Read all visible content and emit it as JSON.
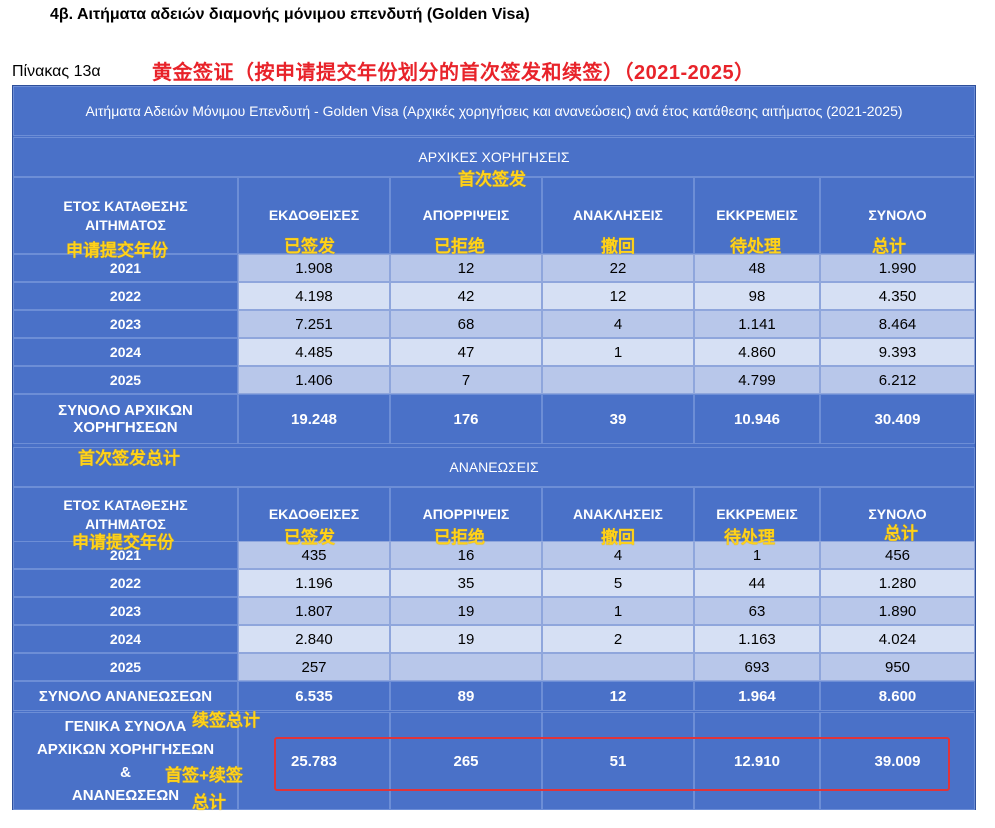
{
  "heading": "4β. Αιτήματα αδειών διαμονής μόνιμου επενδυτή (Golden Visa)",
  "table_label": "Πίνακας 13α",
  "annotation_title": "黄金签证（按申请提交年份划分的首次签发和续签）（2021-2025）",
  "table_title": "Αιτήματα Αδειών Μόνιμου Επενδυτή - Golden Visa (Αρχικές χορηγήσεις και ανανεώσεις) ανά έτος κατάθεσης αιτήματος (2021-2025)",
  "columns": {
    "year": "ΕΤΟΣ ΚΑΤΑΘΕΣΗΣ ΑΙΤΗΜΑΤΟΣ",
    "issued": "ΕΚΔΟΘΕΙΣΕΣ",
    "rejected": "ΑΠΟΡΡΙΨΕΙΣ",
    "revoked": "ΑΝΑΚΛΗΣΕΙΣ",
    "pending": "ΕΚΚΡΕΜΕΙΣ",
    "total": "ΣΥΝΟΛΟ"
  },
  "annotations": {
    "initial_section": "首次签发",
    "year": "申请提交年份",
    "issued": "已签发",
    "rejected": "已拒绝",
    "revoked": "撤回",
    "pending": "待处理",
    "total": "总计",
    "initial_total": "首次签发总计",
    "renewal_total": "续签总计",
    "grand_total_a": "首签+续签",
    "grand_total_b": "总计"
  },
  "initial": {
    "section_title": "ΑΡΧΙΚΕΣ ΧΟΡΗΓΗΣΕΙΣ",
    "rows": [
      {
        "year": "2021",
        "issued": "1.908",
        "rejected": "12",
        "revoked": "22",
        "pending": "48",
        "total": "1.990"
      },
      {
        "year": "2022",
        "issued": "4.198",
        "rejected": "42",
        "revoked": "12",
        "pending": "98",
        "total": "4.350"
      },
      {
        "year": "2023",
        "issued": "7.251",
        "rejected": "68",
        "revoked": "4",
        "pending": "1.141",
        "total": "8.464"
      },
      {
        "year": "2024",
        "issued": "4.485",
        "rejected": "47",
        "revoked": "1",
        "pending": "4.860",
        "total": "9.393"
      },
      {
        "year": "2025",
        "issued": "1.406",
        "rejected": "7",
        "revoked": "",
        "pending": "4.799",
        "total": "6.212"
      }
    ],
    "total": {
      "label": "ΣΥΝΟΛΟ ΑΡΧΙΚΩΝ ΧΟΡΗΓΗΣΕΩΝ",
      "issued": "19.248",
      "rejected": "176",
      "revoked": "39",
      "pending": "10.946",
      "total": "30.409"
    }
  },
  "renewals": {
    "section_title": "ΑΝΑΝΕΩΣΕΙΣ",
    "rows": [
      {
        "year": "2021",
        "issued": "435",
        "rejected": "16",
        "revoked": "4",
        "pending": "1",
        "total": "456"
      },
      {
        "year": "2022",
        "issued": "1.196",
        "rejected": "35",
        "revoked": "5",
        "pending": "44",
        "total": "1.280"
      },
      {
        "year": "2023",
        "issued": "1.807",
        "rejected": "19",
        "revoked": "1",
        "pending": "63",
        "total": "1.890"
      },
      {
        "year": "2024",
        "issued": "2.840",
        "rejected": "19",
        "revoked": "2",
        "pending": "1.163",
        "total": "4.024"
      },
      {
        "year": "2025",
        "issued": "257",
        "rejected": "",
        "revoked": "",
        "pending": "693",
        "total": "950"
      }
    ],
    "total": {
      "label": "ΣΥΝΟΛΟ ΑΝΑΝΕΩΣΕΩΝ",
      "issued": "6.535",
      "rejected": "89",
      "revoked": "12",
      "pending": "1.964",
      "total": "8.600"
    }
  },
  "grand_total": {
    "label_line1": "ΓΕΝΙΚΑ ΣΥΝΟΛΑ",
    "label_line2": "ΑΡΧΙΚΩΝ ΧΟΡΗΓΗΣΕΩΝ",
    "label_line3": "&",
    "label_line4": "ΑΝΑΝΕΩΣΕΩΝ",
    "issued": "25.783",
    "rejected": "265",
    "revoked": "51",
    "pending": "12.910",
    "total": "39.009"
  }
}
